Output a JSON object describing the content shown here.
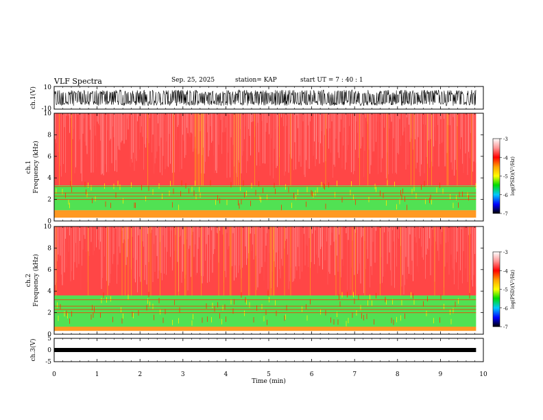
{
  "header": {
    "title": "VLF Spectra",
    "date": "Sep. 25, 2025",
    "station": "station= KAP",
    "start": "start  UT  =   7 : 40 : 1"
  },
  "chart_data": [
    {
      "type": "line",
      "name": "ch1-waveform",
      "ylabel": "ch.1(V)",
      "ylim": [
        -10,
        10
      ],
      "ytick_labels": [
        "10",
        "-10"
      ],
      "xlim": [
        0,
        10
      ],
      "data_end_min": 9.83,
      "description_range_v": [
        -7,
        7
      ]
    },
    {
      "type": "heatmap",
      "name": "ch1-spectrogram",
      "ylabel": "ch.1 Frequency (kHz)",
      "ylim": [
        0,
        10
      ],
      "yticks": [
        0,
        2,
        4,
        6,
        8,
        10
      ],
      "xlim": [
        0,
        10
      ],
      "data_end_min": 9.83,
      "colorbar": {
        "label": "log(PSD)(V²/Hz)",
        "range": [
          -7,
          -3
        ],
        "ticks": [
          "-3",
          "-4",
          "-5",
          "-6",
          "-7"
        ]
      },
      "bands_khz": [
        {
          "low": 0.3,
          "high": 1.0,
          "color": "#ff8c00",
          "level": -4.0
        },
        {
          "low": 1.0,
          "high": 3.3,
          "color": "#33e03a",
          "level": -4.8
        },
        {
          "low": 3.3,
          "high": 10.0,
          "color": "#ff2a2a",
          "level": -3.5
        }
      ]
    },
    {
      "type": "heatmap",
      "name": "ch2-spectrogram",
      "ylabel": "ch.2 Frequency (kHz)",
      "ylim": [
        0,
        10
      ],
      "yticks": [
        0,
        2,
        4,
        6,
        8,
        10
      ],
      "xlim": [
        0,
        10
      ],
      "data_end_min": 9.83,
      "colorbar": {
        "label": "log(PSD)(V²/Hz)",
        "range": [
          -7,
          -3
        ],
        "ticks": [
          "-3",
          "-4",
          "-5",
          "-6",
          "-7"
        ]
      },
      "bands_khz": [
        {
          "low": 0.3,
          "high": 0.7,
          "color": "#ff8c00",
          "level": -4.0
        },
        {
          "low": 0.7,
          "high": 3.6,
          "color": "#33e03a",
          "level": -4.8
        },
        {
          "low": 3.6,
          "high": 10.0,
          "color": "#ff2a2a",
          "level": -3.5
        }
      ]
    },
    {
      "type": "line",
      "name": "ch3-waveform",
      "ylabel": "ch.3(V)",
      "ylim": [
        -5,
        5
      ],
      "ytick_labels": [
        "5",
        "0",
        "-5"
      ],
      "xlim": [
        0,
        10
      ],
      "data_end_min": 9.83,
      "constant_level_v": 0
    }
  ],
  "x_axis": {
    "label": "Time (min)",
    "ticks": [
      "0",
      "1",
      "2",
      "3",
      "4",
      "5",
      "6",
      "7",
      "8",
      "9",
      "10"
    ]
  }
}
